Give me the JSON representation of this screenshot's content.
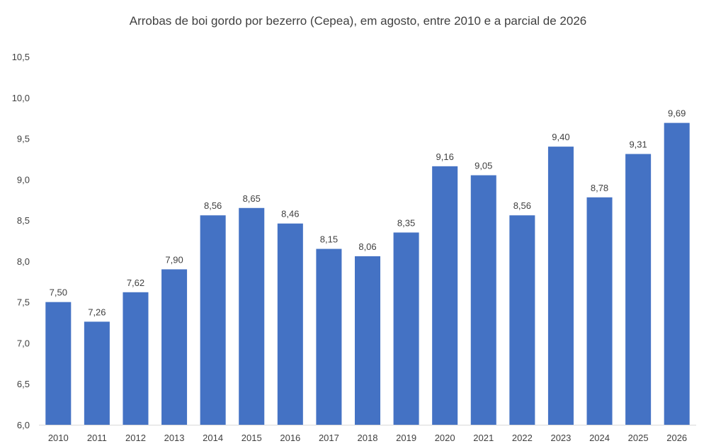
{
  "chart_data": {
    "type": "bar",
    "title": "Arrobas de boi gordo por bezerro (Cepea), em agosto, entre 2010 e a parcial de 2026",
    "xlabel": "",
    "ylabel": "",
    "categories": [
      "2010",
      "2011",
      "2012",
      "2013",
      "2014",
      "2015",
      "2016",
      "2017",
      "2018",
      "2019",
      "2020",
      "2021",
      "2022",
      "2023",
      "2024",
      "2025",
      "2026"
    ],
    "values": [
      7.5,
      7.26,
      7.62,
      7.9,
      8.56,
      8.65,
      8.46,
      8.15,
      8.06,
      8.35,
      9.16,
      9.05,
      8.56,
      9.4,
      8.78,
      9.31,
      9.69
    ],
    "value_labels": [
      "7,50",
      "7,26",
      "7,62",
      "7,90",
      "8,56",
      "8,65",
      "8,46",
      "8,15",
      "8,06",
      "8,35",
      "9,16",
      "9,05",
      "8,56",
      "9,40",
      "8,78",
      "9,31",
      "9,69"
    ],
    "ylim": [
      6.0,
      10.5
    ],
    "y_ticks": [
      6.0,
      6.5,
      7.0,
      7.5,
      8.0,
      8.5,
      9.0,
      9.5,
      10.0,
      10.5
    ],
    "y_tick_labels": [
      "6,0",
      "6,5",
      "7,0",
      "7,5",
      "8,0",
      "8,5",
      "9,0",
      "9,5",
      "10,0",
      "10,5"
    ],
    "grid": false,
    "bar_color": "#4472C4",
    "axis_color": "#D9D9D9"
  }
}
